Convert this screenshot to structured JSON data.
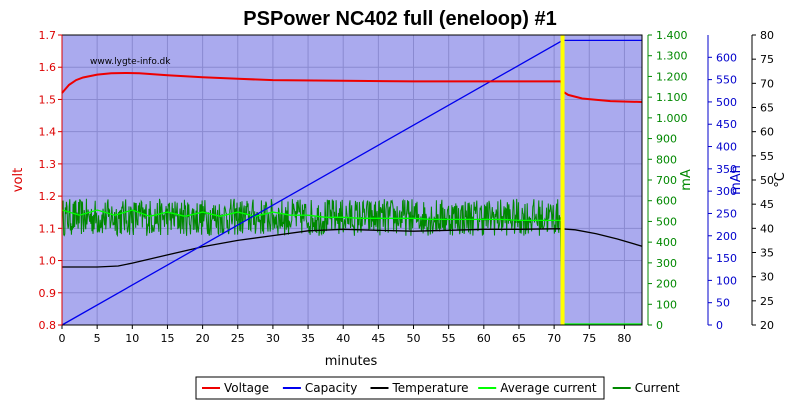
{
  "chart_data": {
    "type": "line",
    "title": "PSPower NC402 full (eneloop) #1",
    "watermark": "www.lygte-info.dk",
    "xlabel": "minutes",
    "xlim": [
      0,
      82.5
    ],
    "x_ticks": [
      "0",
      "5",
      "10",
      "15",
      "20",
      "25",
      "30",
      "35",
      "40",
      "45",
      "50",
      "55",
      "60",
      "65",
      "70",
      "75",
      "80"
    ],
    "y_axes": [
      {
        "label": "volt",
        "color": "#dd0000",
        "range": [
          0.8,
          1.7
        ],
        "ticks": [
          "0.8",
          "0.9",
          "1.0",
          "1.1",
          "1.2",
          "1.3",
          "1.4",
          "1.5",
          "1.6",
          "1.7"
        ]
      },
      {
        "label": "mA",
        "color": "#008800",
        "range": [
          0,
          1400
        ],
        "ticks": [
          "0",
          "100",
          "200",
          "300",
          "400",
          "500",
          "600",
          "700",
          "800",
          "900",
          "1.000",
          "1.100",
          "1.200",
          "1.300",
          "1.400"
        ]
      },
      {
        "label": "mAh",
        "color": "#0000cc",
        "range": [
          0,
          650
        ],
        "ticks": [
          "0",
          "50",
          "100",
          "150",
          "200",
          "250",
          "300",
          "350",
          "400",
          "450",
          "500",
          "550",
          "600"
        ]
      },
      {
        "label": "°C",
        "color": "#000000",
        "range": [
          20,
          80
        ],
        "ticks": [
          "20",
          "25",
          "30",
          "35",
          "40",
          "45",
          "50",
          "55",
          "60",
          "65",
          "70",
          "75",
          "80"
        ]
      }
    ],
    "grid": true,
    "background": "#aaaaee",
    "end_marker_x": 71.2,
    "series": [
      {
        "name": "Voltage",
        "color": "#ee0000",
        "axis": "volt",
        "x": [
          0,
          1,
          2,
          3,
          5,
          7,
          9,
          11,
          13,
          15,
          20,
          25,
          30,
          40,
          50,
          60,
          65,
          70,
          71,
          71.2,
          72,
          74,
          78,
          82.5
        ],
        "y": [
          1.52,
          1.545,
          1.56,
          1.568,
          1.577,
          1.581,
          1.582,
          1.581,
          1.578,
          1.575,
          1.569,
          1.564,
          1.56,
          1.558,
          1.556,
          1.556,
          1.556,
          1.556,
          1.556,
          1.525,
          1.514,
          1.503,
          1.495,
          1.492
        ]
      },
      {
        "name": "Capacity",
        "color": "#0000ee",
        "axis": "mAh",
        "x": [
          0,
          71.2,
          82.5
        ],
        "y": [
          0,
          638,
          638
        ]
      },
      {
        "name": "Temperature",
        "color": "#000000",
        "axis": "°C",
        "x": [
          0,
          3,
          5,
          8,
          10,
          15,
          20,
          25,
          30,
          35,
          40,
          45,
          50,
          55,
          60,
          65,
          70,
          71,
          73,
          76,
          79,
          82.5
        ],
        "y": [
          32,
          32,
          32,
          32.2,
          32.8,
          34.5,
          36.2,
          37.5,
          38.5,
          39.5,
          39.8,
          39.6,
          39.4,
          39.6,
          39.8,
          39.8,
          39.9,
          39.9,
          39.7,
          38.9,
          37.8,
          36.3
        ]
      },
      {
        "name": "Average current",
        "color": "#00ff00",
        "axis": "mA",
        "x": [
          0,
          2.5,
          5,
          7.5,
          10,
          12.5,
          15,
          17.5,
          20,
          22.5,
          25,
          27.5,
          30,
          32.5,
          35,
          37.5,
          40,
          42.5,
          45,
          47.5,
          50,
          52.5,
          55,
          57.5,
          60,
          62.5,
          65,
          67.5,
          70,
          71,
          71.2,
          72,
          82.5
        ],
        "y": [
          555,
          530,
          555,
          530,
          555,
          525,
          545,
          525,
          545,
          525,
          545,
          525,
          545,
          530,
          530,
          520,
          520,
          515,
          515,
          515,
          515,
          510,
          510,
          510,
          510,
          510,
          505,
          505,
          505,
          505,
          5,
          5,
          5
        ]
      },
      {
        "name": "Current",
        "color": "#008800",
        "axis": "mA",
        "x": [
          0,
          70.9,
          71.0,
          71.2,
          71.4,
          82.5
        ],
        "y": [
          520,
          520,
          200,
          10,
          5,
          5
        ],
        "noise_band": [
          430,
          610
        ]
      }
    ],
    "legend": [
      "Voltage",
      "Capacity",
      "Temperature",
      "Average current",
      "Current"
    ],
    "legend_position": "bottom"
  }
}
